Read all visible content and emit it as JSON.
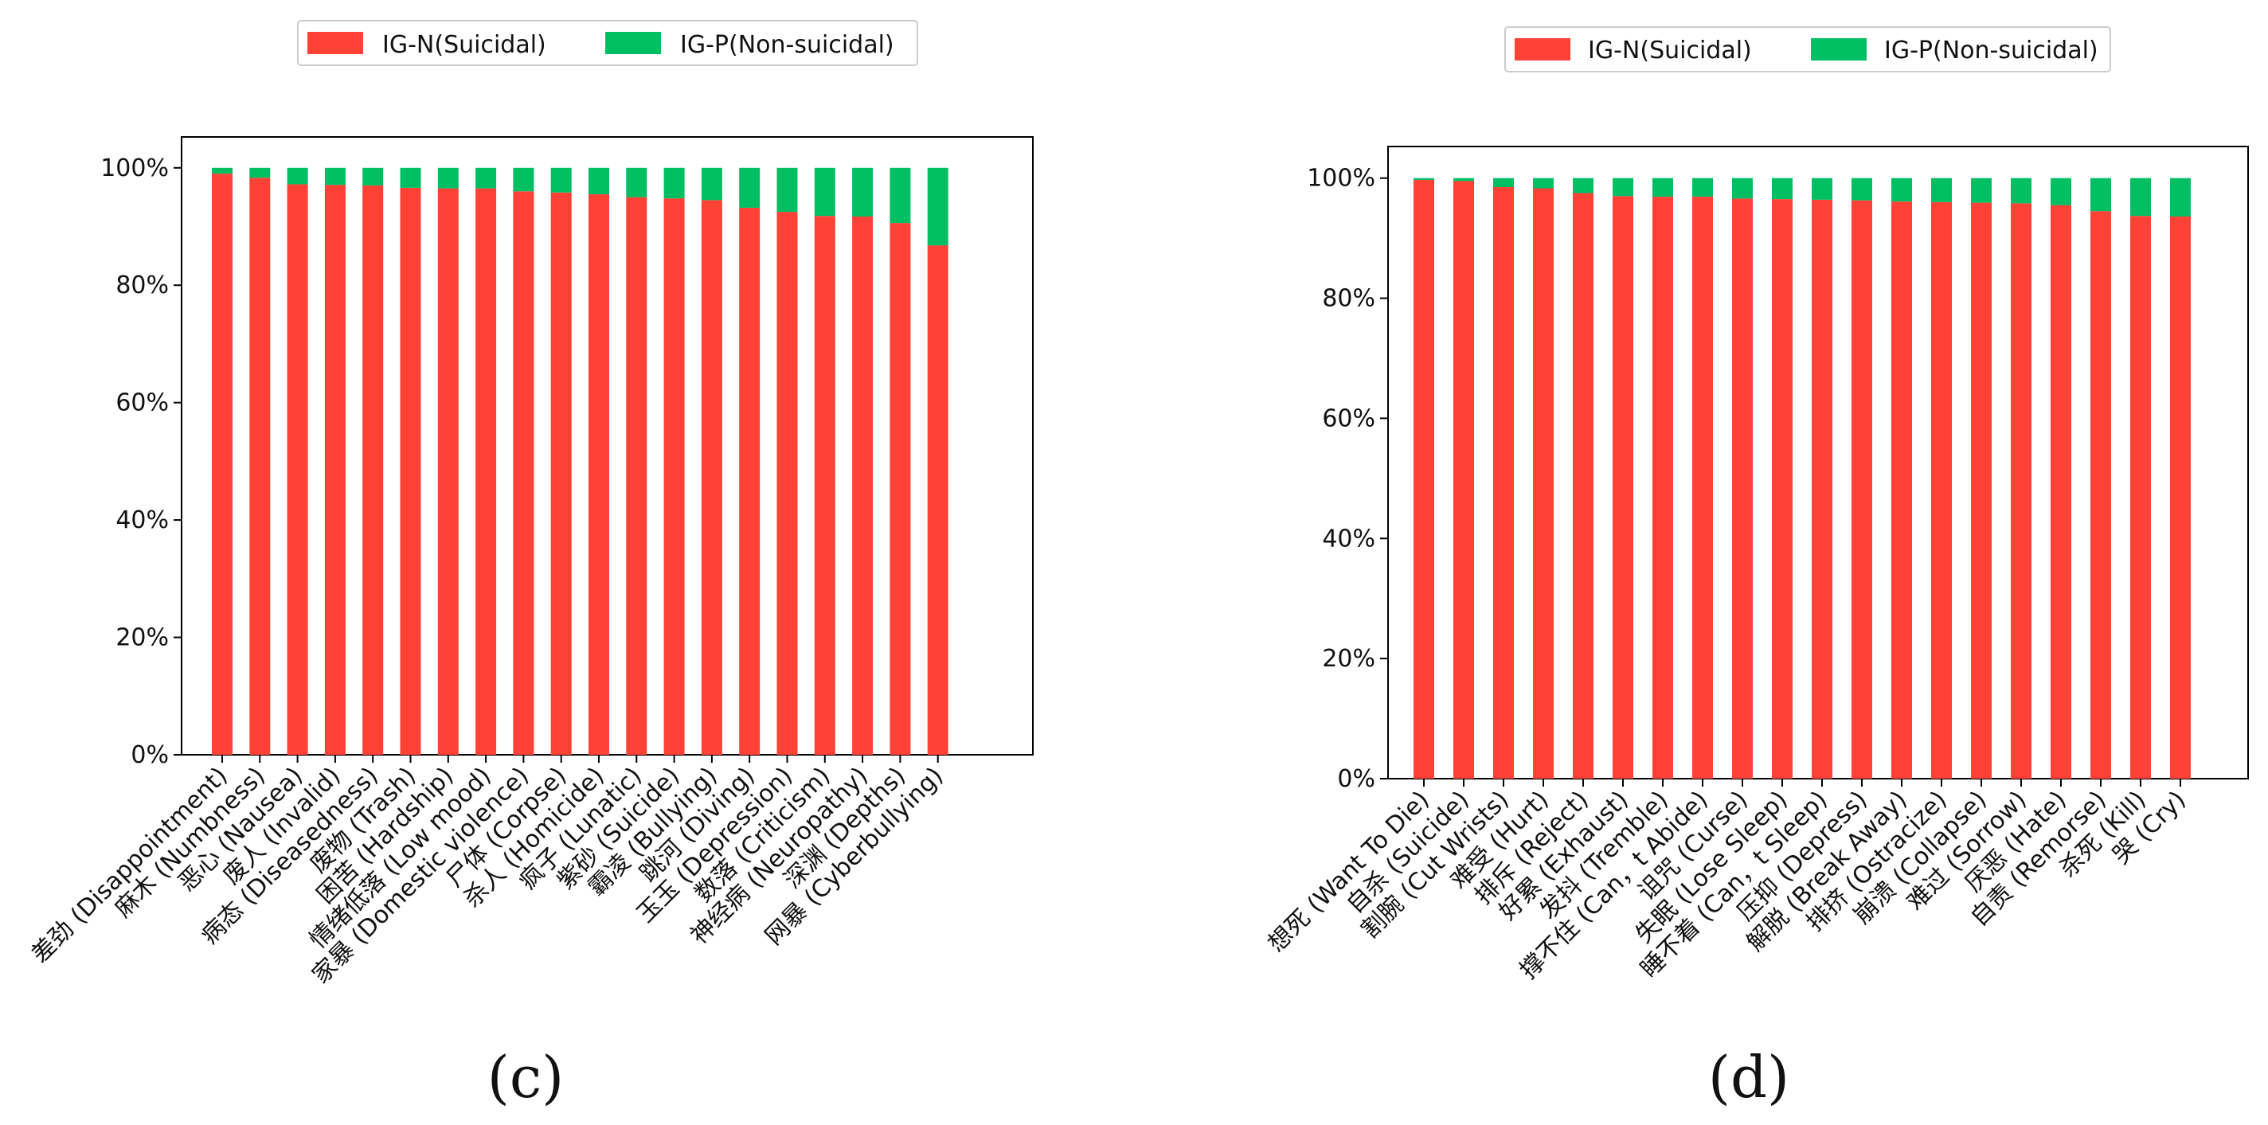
{
  "colors": {
    "suicidal": "#ff4136",
    "non_suicidal": "#00bf63",
    "axis": "#000000"
  },
  "chart_data": [
    {
      "id": "c",
      "type": "bar",
      "stacked": true,
      "panel_label": "(c)",
      "title": "",
      "xlabel": "",
      "ylabel": "",
      "ylim": [
        0,
        100
      ],
      "yticks": [
        "0%",
        "20%",
        "40%",
        "60%",
        "80%",
        "100%"
      ],
      "legend_position": "top-center",
      "categories": [
        "差劲 (Disappointment)",
        "麻木 (Numbness)",
        "恶心 (Nausea)",
        "废人 (Invalid)",
        "病态 (Diseasedness)",
        "废物 (Trash)",
        "困苦 (Hardship)",
        "情绪低落 (Low mood)",
        "家暴 (Domestic violence)",
        "尸体 (Corpse)",
        "杀人 (Homicide)",
        "疯子 (Lunatic)",
        "紫砂 (Suicide)",
        "霸凌 (Bullying)",
        "跳河 (Diving)",
        "玉玉 (Depression)",
        "数落 (Criticism)",
        "神经病 (Neuropathy)",
        "深渊 (Depths)",
        "网暴 (Cyberbullying)"
      ],
      "series": [
        {
          "name": "IG-N(Suicidal)",
          "values": [
            99,
            98.3,
            97.2,
            97.1,
            97.0,
            96.6,
            96.5,
            96.5,
            96.0,
            95.8,
            95.5,
            95.0,
            94.8,
            94.5,
            93.2,
            92.5,
            91.8,
            91.7,
            90.6,
            86.8
          ]
        },
        {
          "name": "IG-P(Non-suicidal)",
          "values": [
            1,
            1.7,
            2.8,
            2.9,
            3.0,
            3.4,
            3.5,
            3.5,
            4.0,
            4.2,
            4.5,
            5.0,
            5.2,
            5.5,
            6.8,
            7.5,
            8.2,
            8.3,
            9.4,
            13.2
          ]
        }
      ]
    },
    {
      "id": "d",
      "type": "bar",
      "stacked": true,
      "panel_label": "(d)",
      "title": "",
      "xlabel": "",
      "ylabel": "",
      "ylim": [
        0,
        100
      ],
      "yticks": [
        "0%",
        "20%",
        "40%",
        "60%",
        "80%",
        "100%"
      ],
      "legend_position": "top-center",
      "categories": [
        "想死 (Want To Die)",
        "自杀 (Suicide)",
        "割腕 (Cut Wrists)",
        "难受 (Hurt)",
        "排斥 (Reject)",
        "好累 (Exhaust)",
        "发抖 (Tremble)",
        "撑不住 (Can，t Abide)",
        "诅咒 (Curse)",
        "失眠 (Lose Sleep)",
        "睡不着 (Can，t Sleep)",
        "压抑 (Depress)",
        "解脱 (Break Away)",
        "排挤 (Ostracize)",
        "崩溃 (Collapse)",
        "难过 (Sorrow)",
        "厌恶 (Hate)",
        "自责 (Remorse)",
        "杀死 (Kill)",
        "哭 (Cry)"
      ],
      "series": [
        {
          "name": "IG-N(Suicidal)",
          "values": [
            99.7,
            99.5,
            98.5,
            98.3,
            97.5,
            97.0,
            96.9,
            96.9,
            96.6,
            96.5,
            96.4,
            96.3,
            96.1,
            96.0,
            95.9,
            95.8,
            95.5,
            94.5,
            93.7,
            93.6
          ]
        },
        {
          "name": "IG-P(Non-suicidal)",
          "values": [
            0.3,
            0.5,
            1.5,
            1.7,
            2.5,
            3.0,
            3.1,
            3.1,
            3.4,
            3.5,
            3.6,
            3.7,
            3.9,
            4.0,
            4.1,
            4.2,
            4.5,
            5.5,
            6.3,
            6.4
          ]
        }
      ]
    }
  ]
}
